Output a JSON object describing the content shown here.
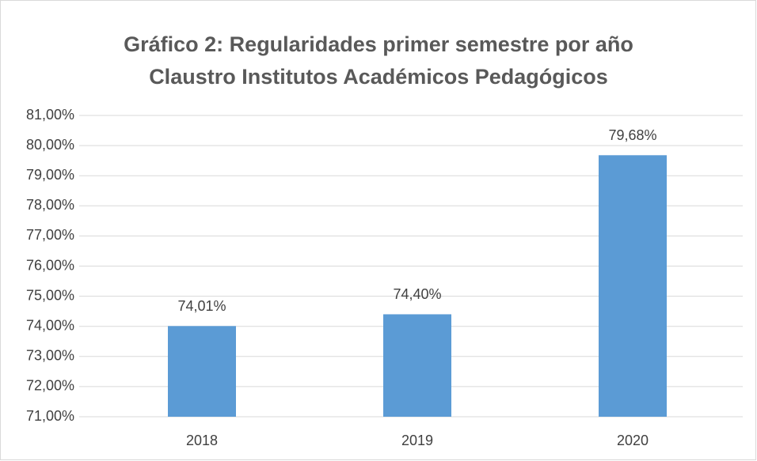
{
  "chart_data": {
    "type": "bar",
    "title": [
      "Gráfico 2: Regularidades primer semestre por año",
      "Claustro Institutos Académicos Pedagógicos"
    ],
    "categories": [
      "2018",
      "2019",
      "2020"
    ],
    "values": [
      74.01,
      74.4,
      79.68
    ],
    "value_labels": [
      "74,01%",
      "74,40%",
      "79,68%"
    ],
    "color": "#5b9bd5",
    "ylim": [
      71,
      81
    ],
    "yticks": [
      {
        "value": 71,
        "label": "71,00%"
      },
      {
        "value": 72,
        "label": "72,00%"
      },
      {
        "value": 73,
        "label": "73,00%"
      },
      {
        "value": 74,
        "label": "74,00%"
      },
      {
        "value": 75,
        "label": "75,00%"
      },
      {
        "value": 76,
        "label": "76,00%"
      },
      {
        "value": 77,
        "label": "77,00%"
      },
      {
        "value": 78,
        "label": "78,00%"
      },
      {
        "value": 79,
        "label": "79,00%"
      },
      {
        "value": 80,
        "label": "80,00%"
      },
      {
        "value": 81,
        "label": "81,00%"
      }
    ],
    "grid": true
  }
}
